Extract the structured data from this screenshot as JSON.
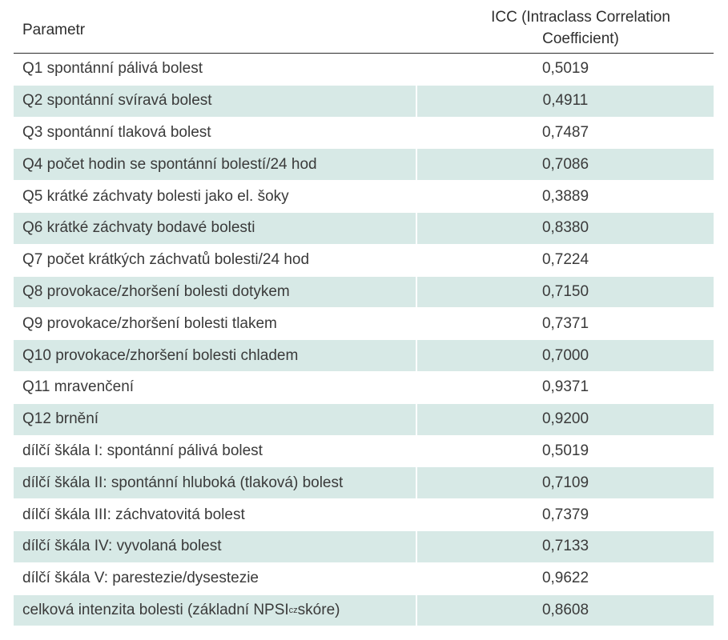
{
  "table": {
    "headers": {
      "parameter": "Parametr",
      "icc_line1": "ICC (Intraclass Correlation",
      "icc_line2": "Coefficient)"
    },
    "rows": [
      {
        "label": "Q1 spontánní pálivá bolest",
        "value": "0,5019"
      },
      {
        "label": "Q2 spontánní svíravá bolest",
        "value": "0,4911"
      },
      {
        "label": "Q3 spontánní tlaková bolest",
        "value": "0,7487"
      },
      {
        "label": "Q4 počet hodin se spontánní bolestí/24 hod",
        "value": "0,7086"
      },
      {
        "label": "Q5 krátké záchvaty bolesti jako el. šoky",
        "value": "0,3889"
      },
      {
        "label": "Q6 krátké záchvaty bodavé bolesti",
        "value": "0,8380"
      },
      {
        "label": "Q7 počet krátkých záchvatů bolesti/24 hod",
        "value": "0,7224"
      },
      {
        "label": "Q8 provokace/zhoršení bolesti dotykem",
        "value": "0,7150"
      },
      {
        "label": "Q9 provokace/zhoršení bolesti tlakem",
        "value": "0,7371"
      },
      {
        "label": "Q10 provokace/zhoršení bolesti chladem",
        "value": "0,7000"
      },
      {
        "label": "Q11 mravenčení",
        "value": "0,9371"
      },
      {
        "label": "Q12 brnění",
        "value": "0,9200"
      },
      {
        "label": "dílčí škála I: spontánní pálivá bolest",
        "value": "0,5019"
      },
      {
        "label": "dílčí škála II: spontánní hluboká (tlaková) bolest",
        "value": "0,7109"
      },
      {
        "label": "dílčí škála III: záchvatovitá bolest",
        "value": "0,7379"
      },
      {
        "label": "dílčí škála IV: vyvolaná bolest",
        "value": "0,7133"
      },
      {
        "label": "dílčí škála V: parestezie/dysestezie",
        "value": "0,9622"
      }
    ],
    "last_row": {
      "label_prefix": "celková intenzita bolesti (základní NPSI",
      "label_sub": "cz",
      "label_suffix": " skóre)",
      "value": "0,8608"
    },
    "colors": {
      "stripe": "#d7e9e6",
      "text": "#3a3a3a",
      "rule": "#2c2c2c"
    }
  }
}
